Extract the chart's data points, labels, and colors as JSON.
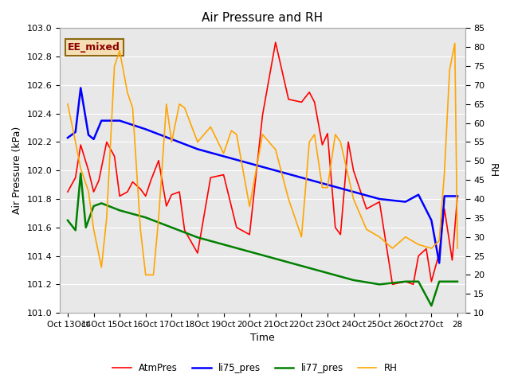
{
  "title": "Air Pressure and RH",
  "xlabel": "Time",
  "ylabel_left": "Air Pressure (kPa)",
  "ylabel_right": "RH",
  "annotation": "EE_mixed",
  "ylim_left": [
    101.0,
    103.0
  ],
  "ylim_right": [
    10,
    85
  ],
  "yticks_left": [
    101.0,
    101.2,
    101.4,
    101.6,
    101.8,
    102.0,
    102.2,
    102.4,
    102.6,
    102.8,
    103.0
  ],
  "yticks_right": [
    10,
    15,
    20,
    25,
    30,
    35,
    40,
    45,
    50,
    55,
    60,
    65,
    70,
    75,
    80,
    85
  ],
  "x_tick_labels": [
    "Oct 13Oct",
    "14Oct",
    "15Oct",
    "16Oct",
    "17Oct",
    "18Oct",
    "19Oct",
    "20Oct",
    "21Oct",
    "22Oct",
    "23Oct",
    "24Oct",
    "25Oct",
    "26Oct",
    "27Oct",
    "28"
  ],
  "AtmPres": {
    "color": "red",
    "label": "AtmPres",
    "x": [
      0,
      0.3,
      0.5,
      0.8,
      1.0,
      1.2,
      1.5,
      1.8,
      2.0,
      2.3,
      2.5,
      2.8,
      3.0,
      3.2,
      3.5,
      3.8,
      4.0,
      4.3,
      4.5,
      5.0,
      5.5,
      6.0,
      6.5,
      7.0,
      7.5,
      8.0,
      8.5,
      9.0,
      9.3,
      9.5,
      9.8,
      10.0,
      10.3,
      10.5,
      10.8,
      11.0,
      11.5,
      12.0,
      12.5,
      13.0,
      13.3,
      13.5,
      13.8,
      14.0,
      14.3,
      14.5,
      14.8,
      15.0
    ],
    "y": [
      101.85,
      101.95,
      102.18,
      102.0,
      101.85,
      101.93,
      102.2,
      102.1,
      101.82,
      101.85,
      101.92,
      101.87,
      101.82,
      101.93,
      102.07,
      101.75,
      101.83,
      101.85,
      101.58,
      101.42,
      101.95,
      101.97,
      101.6,
      101.55,
      102.39,
      102.9,
      102.5,
      102.48,
      102.55,
      102.48,
      102.18,
      102.26,
      101.6,
      101.55,
      102.2,
      102.0,
      101.73,
      101.78,
      101.2,
      101.22,
      101.2,
      101.4,
      101.45,
      101.22,
      101.42,
      101.73,
      101.37,
      101.82
    ]
  },
  "li75_pres": {
    "color": "blue",
    "label": "li75_pres",
    "x": [
      0,
      0.3,
      0.5,
      0.8,
      1.0,
      1.3,
      2.0,
      3.0,
      4.0,
      5.0,
      6.0,
      7.0,
      8.0,
      9.0,
      10.0,
      11.0,
      12.0,
      13.0,
      13.5,
      14.0,
      14.3,
      14.5,
      15.0
    ],
    "y": [
      102.23,
      102.27,
      102.58,
      102.25,
      102.22,
      102.35,
      102.35,
      102.29,
      102.22,
      102.15,
      102.1,
      102.05,
      102.0,
      101.95,
      101.9,
      101.85,
      101.8,
      101.78,
      101.83,
      101.65,
      101.35,
      101.82,
      101.82
    ]
  },
  "li77_pres": {
    "color": "green",
    "label": "li77_pres",
    "x": [
      0,
      0.3,
      0.5,
      0.7,
      1.0,
      1.3,
      2.0,
      3.0,
      4.0,
      5.0,
      6.0,
      7.0,
      8.0,
      9.0,
      10.0,
      11.0,
      12.0,
      13.0,
      13.5,
      14.0,
      14.3,
      14.5,
      15.0
    ],
    "y": [
      101.65,
      101.58,
      101.98,
      101.6,
      101.75,
      101.77,
      101.72,
      101.67,
      101.6,
      101.53,
      101.48,
      101.43,
      101.38,
      101.33,
      101.28,
      101.23,
      101.2,
      101.22,
      101.22,
      101.05,
      101.22,
      101.22,
      101.22
    ]
  },
  "RH": {
    "color": "orange",
    "label": "RH",
    "x": [
      0,
      0.3,
      0.5,
      0.8,
      1.0,
      1.3,
      1.5,
      1.8,
      2.0,
      2.3,
      2.5,
      2.8,
      3.0,
      3.3,
      3.5,
      3.8,
      4.0,
      4.3,
      4.5,
      5.0,
      5.5,
      6.0,
      6.3,
      6.5,
      7.0,
      7.5,
      8.0,
      8.5,
      9.0,
      9.3,
      9.5,
      9.8,
      10.0,
      10.3,
      10.5,
      11.0,
      11.5,
      12.0,
      12.5,
      13.0,
      13.5,
      14.0,
      14.3,
      14.5,
      14.7,
      14.9,
      15.0
    ],
    "y": [
      65,
      55,
      48,
      42,
      32,
      22,
      35,
      75,
      79,
      68,
      64,
      32,
      20,
      20,
      35,
      65,
      55,
      65,
      64,
      55,
      59,
      52,
      58,
      57,
      38,
      57,
      53,
      40,
      30,
      55,
      57,
      43,
      43,
      57,
      55,
      40,
      32,
      30,
      27,
      30,
      28,
      27,
      29,
      47,
      74,
      81,
      27
    ]
  },
  "bg_color": "#e8e8e8",
  "grid_color": "#ffffff",
  "fig_bg": "#ffffff",
  "title_fontsize": 11,
  "label_fontsize": 9,
  "tick_fontsize": 8,
  "xlim": [
    -0.3,
    15.3
  ]
}
